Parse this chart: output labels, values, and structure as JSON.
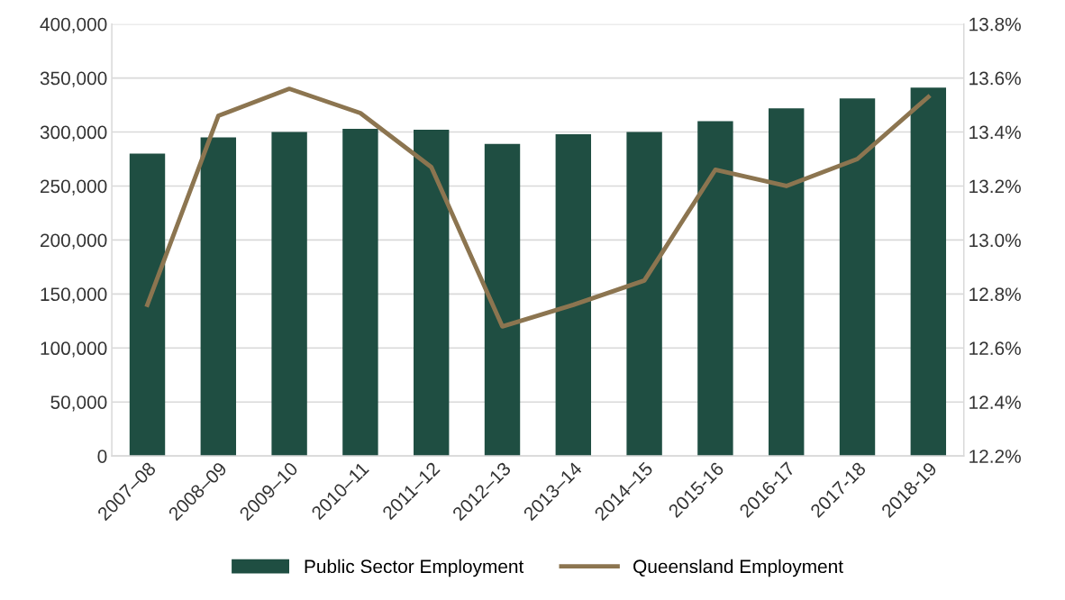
{
  "chart_data": {
    "type": "bar",
    "categories": [
      "2007–08",
      "2008–09",
      "2009–10",
      "2010–11",
      "2011–12",
      "2012–13",
      "2013–14",
      "2014–15",
      "2015-16",
      "2016-17",
      "2017-18",
      "2018-19"
    ],
    "series": [
      {
        "name": "Public Sector Employment",
        "color": "#1f4e42",
        "values": [
          280000,
          295000,
          300000,
          303000,
          302000,
          289000,
          298000,
          300000,
          310000,
          322000,
          331000,
          341000
        ]
      },
      {
        "name": "Queensland Employment",
        "type": "line",
        "axis": "y2",
        "color": "#8c7550",
        "values": [
          12.76,
          13.46,
          13.56,
          13.47,
          13.27,
          12.68,
          12.76,
          12.85,
          13.26,
          13.2,
          13.3,
          13.53
        ]
      }
    ],
    "ylim": [
      0,
      400000
    ],
    "yticks": [
      {
        "value": 0,
        "label": "0"
      },
      {
        "value": 50000,
        "label": "50,000"
      },
      {
        "value": 100000,
        "label": "100,000"
      },
      {
        "value": 150000,
        "label": "150,000"
      },
      {
        "value": 200000,
        "label": "200,000"
      },
      {
        "value": 250000,
        "label": "250,000"
      },
      {
        "value": 300000,
        "label": "300,000"
      },
      {
        "value": 350000,
        "label": "350,000"
      },
      {
        "value": 400000,
        "label": "400,000"
      }
    ],
    "y2lim": [
      12.2,
      13.8
    ],
    "y2ticks": [
      {
        "value": 12.2,
        "label": "12.2%"
      },
      {
        "value": 12.4,
        "label": "12.4%"
      },
      {
        "value": 12.6,
        "label": "12.6%"
      },
      {
        "value": 12.8,
        "label": "12.8%"
      },
      {
        "value": 13.0,
        "label": "13.0%"
      },
      {
        "value": 13.2,
        "label": "13.2%"
      },
      {
        "value": 13.4,
        "label": "13.4%"
      },
      {
        "value": 13.6,
        "label": "13.6%"
      },
      {
        "value": 13.8,
        "label": "13.8%"
      }
    ],
    "grid": "y",
    "legend": "bottom",
    "marker": "none",
    "line_style": "solid"
  }
}
